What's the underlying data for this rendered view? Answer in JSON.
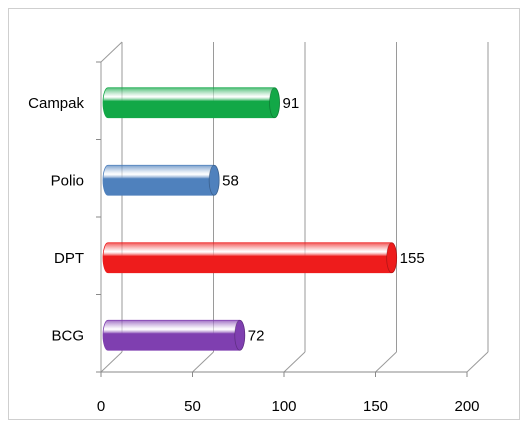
{
  "chart_data": {
    "type": "bar",
    "orientation": "horizontal",
    "style": "3d-cylinder",
    "categories": [
      "Campak",
      "Polio",
      "DPT",
      "BCG"
    ],
    "values": [
      91,
      58,
      155,
      72
    ],
    "data_labels": [
      "91",
      "58",
      "155",
      "72"
    ],
    "bar_colors": [
      "#12a847",
      "#4f81bd",
      "#ee1c1c",
      "#7f3fb0"
    ],
    "xlim": [
      0,
      200
    ],
    "x_ticks": [
      0,
      50,
      100,
      150,
      200
    ],
    "x_tick_labels": [
      "0",
      "50",
      "100",
      "150",
      "200"
    ],
    "grid": true,
    "legend": "none"
  }
}
